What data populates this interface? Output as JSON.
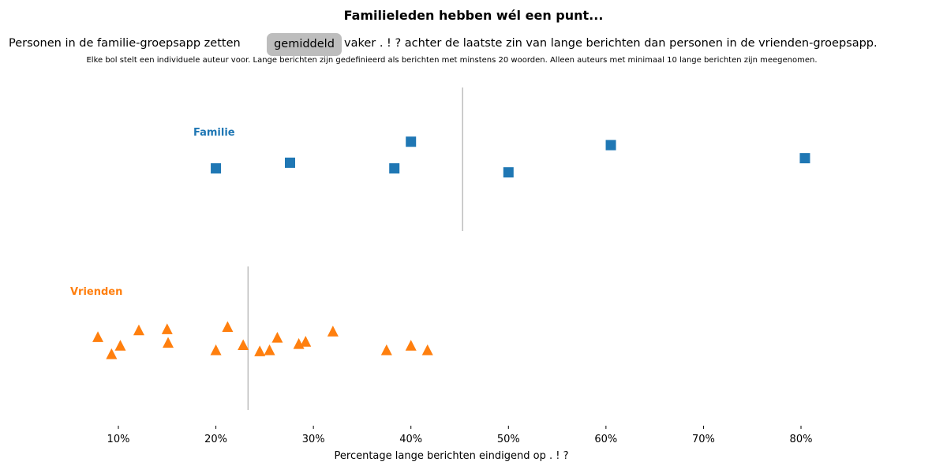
{
  "title": "Familieleden hebben wél een punt...",
  "subtitle": {
    "before": "Personen in de familie-groepsapp zetten",
    "highlight": "gemiddeld",
    "after": "vaker . ! ? achter de laatste zin van lange berichten dan personen in de vrienden-groepsapp."
  },
  "note": "Elke bol stelt een individuele auteur voor. Lange berichten zijn gedefinieerd als berichten met minstens 20 woorden. Alleen auteurs met minimaal 10 lange berichten zijn meegenomen.",
  "chart_data": {
    "type": "scatter",
    "xlabel": "Percentage lange berichten eindigend op . ! ?",
    "xlim": [
      3,
      92
    ],
    "xticks": [
      10,
      20,
      30,
      40,
      50,
      60,
      70,
      80
    ],
    "xtick_labels": [
      "10%",
      "20%",
      "30%",
      "40%",
      "50%",
      "60%",
      "70%",
      "80%"
    ],
    "grid": false,
    "series": [
      {
        "name": "Familie",
        "color": "#1f77b4",
        "marker": "square",
        "mean": 45.3,
        "x": [
          20.0,
          27.6,
          38.3,
          40.0,
          50.0,
          60.5,
          80.4
        ],
        "jitter": [
          -0.05,
          0.05,
          -0.05,
          0.42,
          -0.12,
          0.36,
          0.13
        ]
      },
      {
        "name": "Vrienden",
        "color": "#ff7f0e",
        "marker": "triangle",
        "mean": 23.3,
        "x": [
          7.9,
          9.3,
          10.2,
          12.1,
          15.0,
          15.1,
          20.0,
          21.2,
          22.8,
          24.5,
          25.5,
          26.3,
          28.5,
          29.2,
          32.0,
          37.5,
          40.0,
          41.7
        ],
        "jitter": [
          0.11,
          -0.19,
          -0.04,
          0.23,
          0.25,
          0.01,
          -0.12,
          0.29,
          -0.03,
          -0.14,
          -0.12,
          0.1,
          -0.01,
          0.03,
          0.21,
          -0.12,
          -0.04,
          -0.12
        ]
      }
    ]
  }
}
